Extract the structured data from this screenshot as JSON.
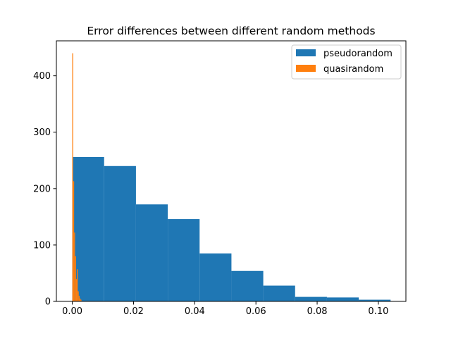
{
  "chart_data": {
    "type": "bar",
    "title": "Error differences between different random methods",
    "xlabel": "",
    "ylabel": "",
    "xlim": [
      -0.0052,
      0.109
    ],
    "ylim": [
      0,
      462
    ],
    "xticks": [
      {
        "value": 0.0,
        "label": "0.00"
      },
      {
        "value": 0.02,
        "label": "0.02"
      },
      {
        "value": 0.04,
        "label": "0.04"
      },
      {
        "value": 0.06,
        "label": "0.06"
      },
      {
        "value": 0.08,
        "label": "0.08"
      },
      {
        "value": 0.1,
        "label": "0.10"
      }
    ],
    "yticks": [
      {
        "value": 0,
        "label": "0"
      },
      {
        "value": 100,
        "label": "100"
      },
      {
        "value": 200,
        "label": "200"
      },
      {
        "value": 300,
        "label": "300"
      },
      {
        "value": 400,
        "label": "400"
      }
    ],
    "legend": {
      "position": "top-right"
    },
    "grid": false,
    "series": [
      {
        "name": "pseudorandom",
        "color": "#1f77b4",
        "bin_edges": [
          0.0,
          0.0104,
          0.0208,
          0.0312,
          0.0416,
          0.052,
          0.0624,
          0.0728,
          0.0832,
          0.0936,
          0.104
        ],
        "counts": [
          256,
          240,
          172,
          146,
          85,
          54,
          28,
          8,
          7,
          3
        ]
      },
      {
        "name": "quasirandom",
        "color": "#ff7f0e",
        "bin_edges": [
          0.0,
          0.0003,
          0.0006,
          0.0009,
          0.0012,
          0.0015,
          0.0018,
          0.0021,
          0.0024,
          0.0027,
          0.003
        ],
        "counts": [
          440,
          213,
          122,
          80,
          40,
          57,
          18,
          10,
          5,
          3
        ]
      }
    ]
  }
}
